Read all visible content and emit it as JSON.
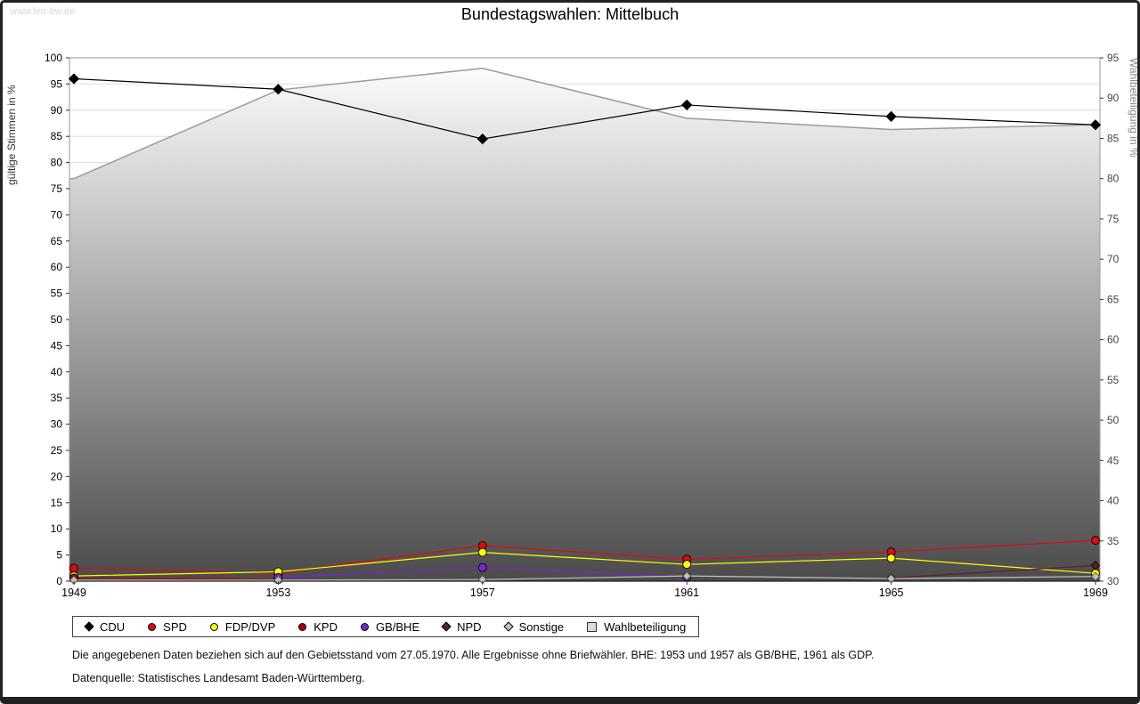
{
  "page": {
    "watermark": "www.leo-bw.de",
    "title": "Bundestagswahlen: Mittelbuch",
    "footnote1": "Die angegebenen Daten beziehen sich auf den Gebietsstand vom 27.05.1970. Alle Ergebnisse ohne Briefwähler. BHE: 1953 und 1957 als GB/BHE, 1961 als GDP.",
    "footnote2": "Datenquelle: Statistisches Landesamt Baden-Württemberg."
  },
  "chart_data": {
    "type": "line",
    "title": "Bundestagswahlen: Mittelbuch",
    "x": [
      1949,
      1953,
      1957,
      1961,
      1965,
      1969
    ],
    "grid": true,
    "legend_position": "bottom",
    "left_axis": {
      "label": "gültige Stimmen in %",
      "min": 0,
      "max": 100,
      "step": 5
    },
    "right_axis": {
      "label": "Wahlbeteiligung in %",
      "min": 30,
      "max": 95,
      "step": 5
    },
    "series": [
      {
        "name": "Wahlbeteiligung",
        "axis": "right",
        "color": "#9b9b9b",
        "marker": "square",
        "area": true,
        "values": [
          80,
          91,
          93.7,
          87.5,
          86.1,
          86.7
        ]
      },
      {
        "name": "CDU",
        "axis": "left",
        "color": "#000000",
        "marker": "diamond",
        "values": [
          96,
          94,
          84.5,
          91,
          88.8,
          87.2
        ]
      },
      {
        "name": "SPD",
        "axis": "left",
        "color": "#e30613",
        "marker": "circle",
        "values": [
          2.5,
          1.5,
          6.8,
          4.2,
          5.6,
          7.8
        ]
      },
      {
        "name": "FDP/DVP",
        "axis": "left",
        "color": "#ffff00",
        "marker": "circle",
        "values": [
          1.0,
          1.8,
          5.5,
          3.2,
          4.4,
          1.5
        ]
      },
      {
        "name": "KPD",
        "axis": "left",
        "color": "#b00000",
        "marker": "circle",
        "values": [
          0.6,
          0.3,
          null,
          null,
          null,
          null
        ]
      },
      {
        "name": "GB/BHE",
        "axis": "left",
        "color": "#7d26cd",
        "marker": "circle",
        "values": [
          null,
          0.7,
          2.6,
          0.8,
          null,
          null
        ]
      },
      {
        "name": "NPD",
        "axis": "left",
        "color": "#5e2129",
        "marker": "diamond",
        "values": [
          null,
          null,
          null,
          null,
          0.6,
          3.0
        ]
      },
      {
        "name": "Sonstige",
        "axis": "left",
        "color": "#c0c0c0",
        "marker": "diamond",
        "values": [
          0.2,
          0.2,
          0.3,
          1.0,
          0.5,
          0.9
        ]
      }
    ],
    "area_gradient": {
      "top": "#ffffff",
      "bottom": "#4b4b4b"
    }
  },
  "legend_order": [
    "CDU",
    "SPD",
    "FDP/DVP",
    "KPD",
    "GB/BHE",
    "NPD",
    "Sonstige",
    "Wahlbeteiligung"
  ]
}
